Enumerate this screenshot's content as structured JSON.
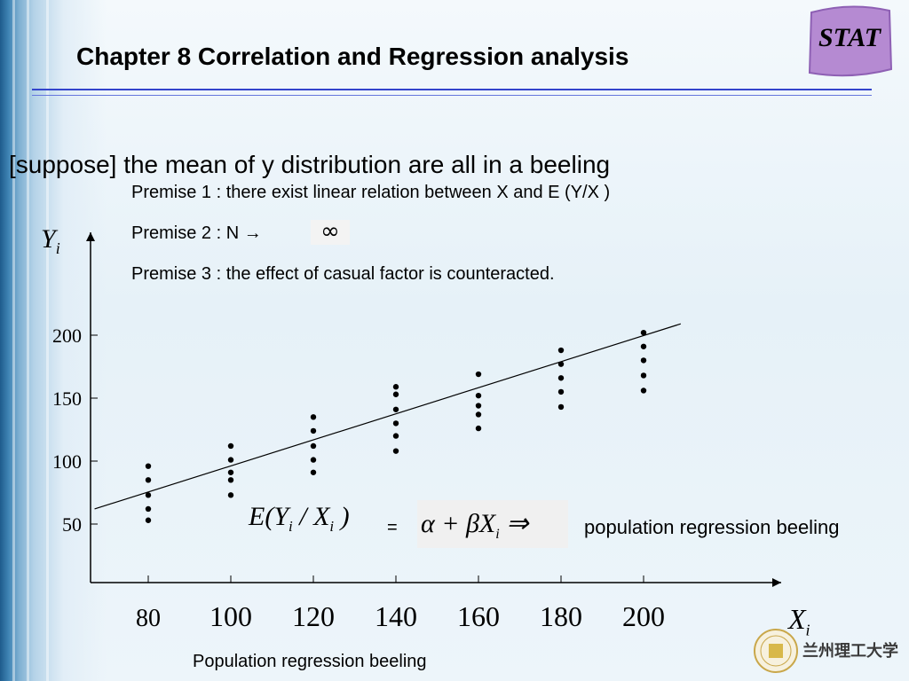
{
  "title": "Chapter 8 Correlation and Regression analysis",
  "badge": "STAT",
  "heading": "[suppose] the mean of y distribution are all in a beeling",
  "premises": {
    "p1": "Premise 1 : there exist linear relation between X and E (Y/X )",
    "p2": "Premise 2 : N →",
    "p2_symbol": "∞",
    "p3": "Premise 3 : the effect of casual factor is counteracted."
  },
  "equation": {
    "lhs_E": "E(Y",
    "lhs_sub1": "i",
    "lhs_mid": " / X",
    "lhs_sub2": "i",
    "lhs_end": " )",
    "equals": "=",
    "rhs": "α + βX",
    "rhs_sub": "i",
    "rhs_arrow": "  ⇒",
    "label": "population regression beeling"
  },
  "caption": "Population regression beeling",
  "logo_text": "兰州理工大学",
  "chart_data": {
    "type": "scatter",
    "ylabel": "Y",
    "ylabel_sub": "i",
    "xlabel": "X",
    "xlabel_sub": "i",
    "x_ticks": [
      80,
      100,
      120,
      140,
      160,
      180,
      200
    ],
    "y_ticks": [
      50,
      100,
      150,
      200
    ],
    "points": [
      {
        "x": 80,
        "y": [
          53,
          62,
          73,
          85,
          96
        ]
      },
      {
        "x": 100,
        "y": [
          73,
          85,
          91,
          101,
          112
        ]
      },
      {
        "x": 120,
        "y": [
          91,
          101,
          112,
          124,
          135
        ]
      },
      {
        "x": 140,
        "y": [
          108,
          120,
          130,
          141,
          153,
          159
        ]
      },
      {
        "x": 160,
        "y": [
          126,
          137,
          144,
          152,
          169
        ]
      },
      {
        "x": 180,
        "y": [
          143,
          155,
          166,
          177,
          188
        ]
      },
      {
        "x": 200,
        "y": [
          156,
          168,
          180,
          191,
          202
        ]
      }
    ],
    "regression_line": {
      "x": [
        67,
        209
      ],
      "y": [
        62,
        209
      ]
    },
    "grid": false
  }
}
